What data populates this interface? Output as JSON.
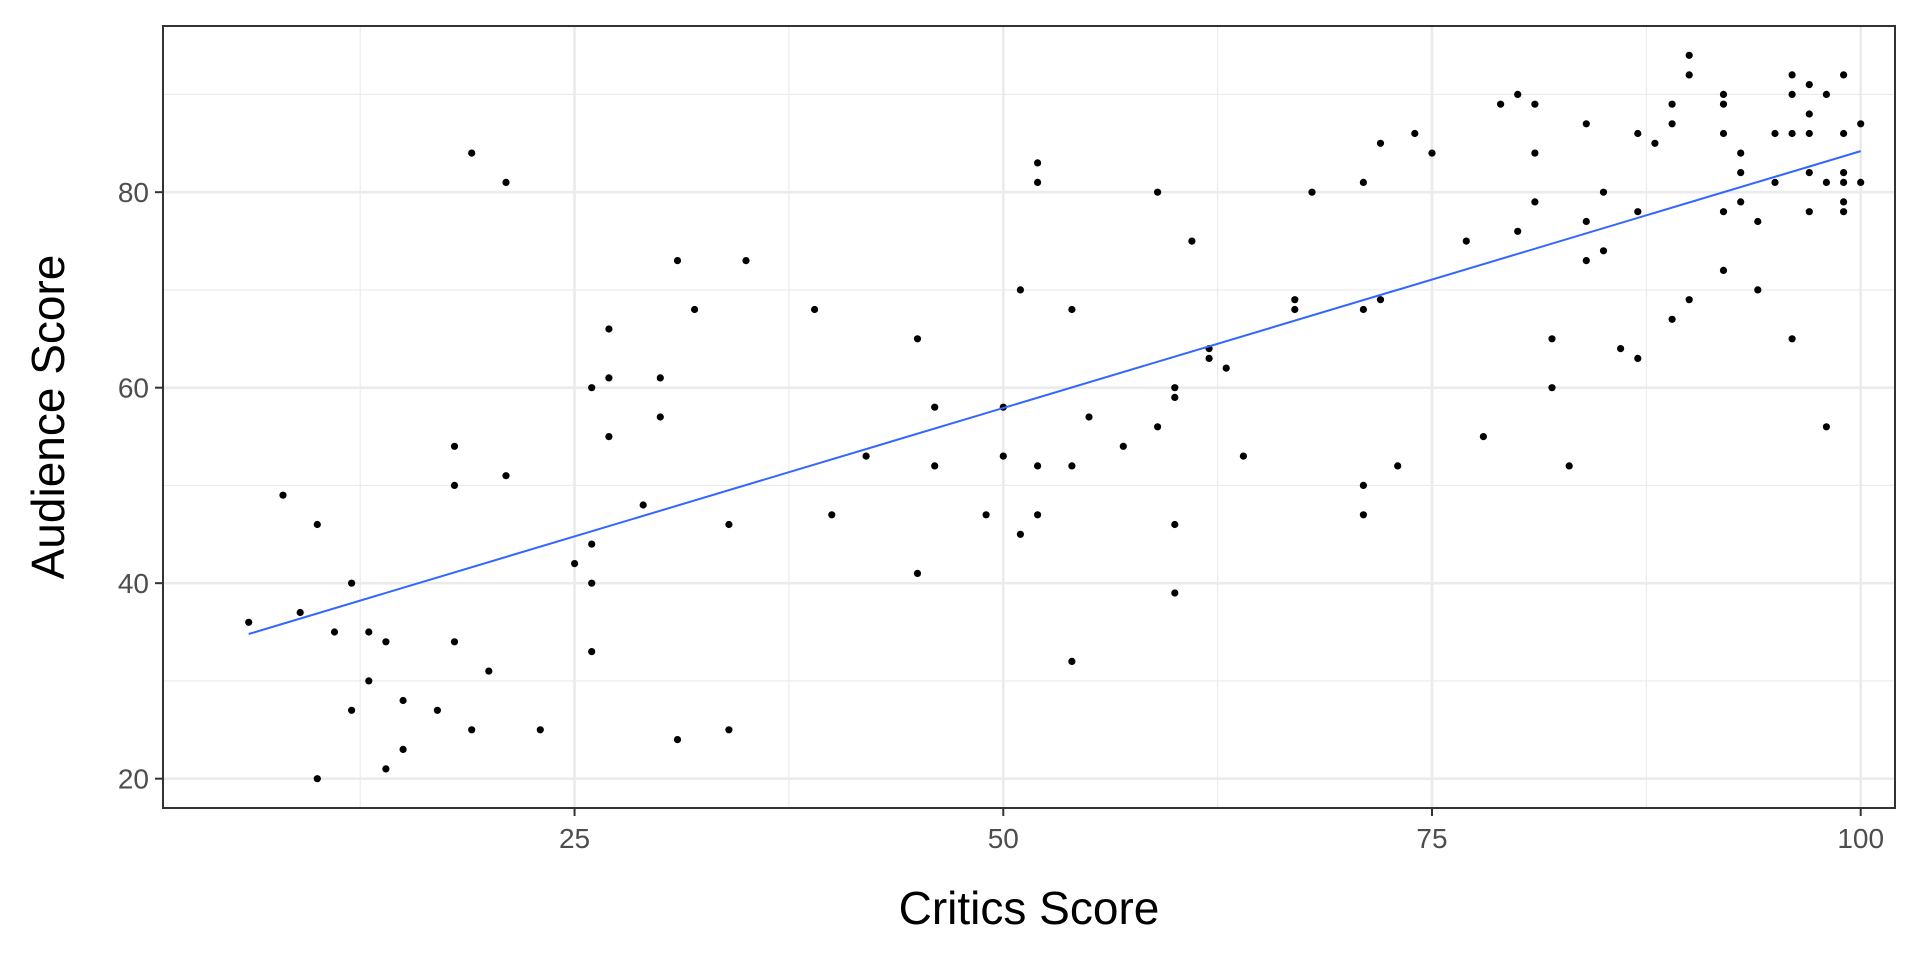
{
  "chart_data": {
    "type": "scatter",
    "title": "",
    "xlabel": "Critics Score",
    "ylabel": "Audience Score",
    "xlim": [
      1,
      102
    ],
    "ylim": [
      17,
      97
    ],
    "x_ticks": [
      25,
      50,
      75,
      100
    ],
    "y_ticks": [
      20,
      40,
      60,
      80
    ],
    "x_tick_labels": [
      "25",
      "50",
      "75",
      "100"
    ],
    "y_tick_labels": [
      "20",
      "40",
      "60",
      "80"
    ],
    "x_minor_ticks": [
      12.5,
      37.5,
      62.5,
      87.5
    ],
    "y_minor_ticks": [
      30,
      50,
      70,
      90
    ],
    "grid": true,
    "point_color": "#000000",
    "trend_color": "#3366ff",
    "trend_line": [
      [
        6,
        34.8
      ],
      [
        100,
        84.2
      ]
    ],
    "points": [
      [
        6,
        36
      ],
      [
        8,
        49
      ],
      [
        9,
        37
      ],
      [
        10,
        46
      ],
      [
        10,
        20
      ],
      [
        11,
        35
      ],
      [
        12,
        40
      ],
      [
        12,
        27
      ],
      [
        13,
        35
      ],
      [
        13,
        30
      ],
      [
        14,
        34
      ],
      [
        14,
        21
      ],
      [
        15,
        28
      ],
      [
        15,
        23
      ],
      [
        17,
        27
      ],
      [
        18,
        54
      ],
      [
        18,
        50
      ],
      [
        18,
        34
      ],
      [
        19,
        84
      ],
      [
        19,
        25
      ],
      [
        20,
        31
      ],
      [
        21,
        81
      ],
      [
        21,
        51
      ],
      [
        23,
        25
      ],
      [
        25,
        42
      ],
      [
        26,
        60
      ],
      [
        26,
        44
      ],
      [
        26,
        40
      ],
      [
        26,
        33
      ],
      [
        27,
        66
      ],
      [
        27,
        61
      ],
      [
        27,
        55
      ],
      [
        29,
        48
      ],
      [
        30,
        61
      ],
      [
        30,
        57
      ],
      [
        31,
        73
      ],
      [
        31,
        24
      ],
      [
        32,
        68
      ],
      [
        34,
        46
      ],
      [
        34,
        25
      ],
      [
        35,
        73
      ],
      [
        39,
        68
      ],
      [
        40,
        47
      ],
      [
        42,
        53
      ],
      [
        45,
        65
      ],
      [
        45,
        41
      ],
      [
        46,
        58
      ],
      [
        46,
        52
      ],
      [
        49,
        47
      ],
      [
        50,
        58
      ],
      [
        50,
        53
      ],
      [
        51,
        70
      ],
      [
        51,
        45
      ],
      [
        52,
        83
      ],
      [
        52,
        81
      ],
      [
        52,
        52
      ],
      [
        52,
        47
      ],
      [
        54,
        68
      ],
      [
        54,
        52
      ],
      [
        54,
        32
      ],
      [
        55,
        57
      ],
      [
        57,
        54
      ],
      [
        59,
        80
      ],
      [
        59,
        56
      ],
      [
        60,
        60
      ],
      [
        60,
        59
      ],
      [
        60,
        46
      ],
      [
        60,
        39
      ],
      [
        61,
        75
      ],
      [
        62,
        64
      ],
      [
        62,
        63
      ],
      [
        63,
        62
      ],
      [
        64,
        53
      ],
      [
        67,
        69
      ],
      [
        67,
        68
      ],
      [
        68,
        80
      ],
      [
        71,
        81
      ],
      [
        71,
        68
      ],
      [
        71,
        50
      ],
      [
        71,
        47
      ],
      [
        72,
        85
      ],
      [
        72,
        69
      ],
      [
        73,
        52
      ],
      [
        74,
        86
      ],
      [
        75,
        84
      ],
      [
        77,
        75
      ],
      [
        78,
        55
      ],
      [
        79,
        89
      ],
      [
        80,
        90
      ],
      [
        80,
        76
      ],
      [
        81,
        89
      ],
      [
        81,
        84
      ],
      [
        81,
        79
      ],
      [
        82,
        65
      ],
      [
        82,
        60
      ],
      [
        83,
        52
      ],
      [
        84,
        87
      ],
      [
        84,
        77
      ],
      [
        84,
        73
      ],
      [
        85,
        80
      ],
      [
        85,
        74
      ],
      [
        86,
        64
      ],
      [
        87,
        86
      ],
      [
        87,
        78
      ],
      [
        87,
        63
      ],
      [
        88,
        85
      ],
      [
        89,
        89
      ],
      [
        89,
        87
      ],
      [
        89,
        67
      ],
      [
        90,
        94
      ],
      [
        90,
        92
      ],
      [
        90,
        69
      ],
      [
        92,
        90
      ],
      [
        92,
        89
      ],
      [
        92,
        86
      ],
      [
        92,
        78
      ],
      [
        92,
        72
      ],
      [
        93,
        84
      ],
      [
        93,
        82
      ],
      [
        93,
        79
      ],
      [
        94,
        77
      ],
      [
        94,
        70
      ],
      [
        95,
        86
      ],
      [
        95,
        81
      ],
      [
        96,
        92
      ],
      [
        96,
        90
      ],
      [
        96,
        86
      ],
      [
        96,
        65
      ],
      [
        97,
        91
      ],
      [
        97,
        88
      ],
      [
        97,
        86
      ],
      [
        97,
        82
      ],
      [
        97,
        78
      ],
      [
        98,
        90
      ],
      [
        98,
        81
      ],
      [
        98,
        56
      ],
      [
        99,
        92
      ],
      [
        99,
        86
      ],
      [
        99,
        82
      ],
      [
        99,
        81
      ],
      [
        99,
        79
      ],
      [
        99,
        78
      ],
      [
        100,
        87
      ],
      [
        100,
        81
      ]
    ]
  }
}
